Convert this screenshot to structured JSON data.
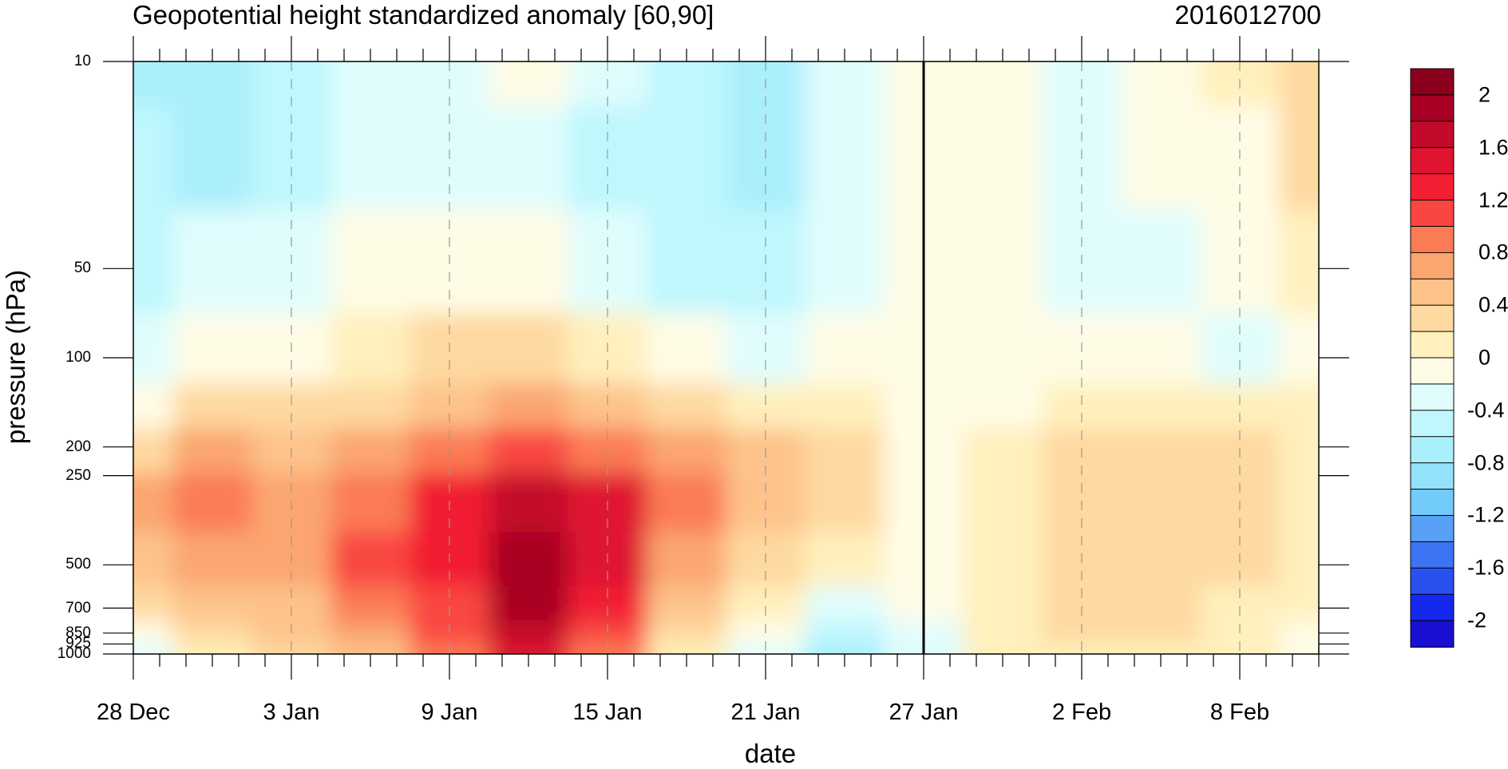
{
  "title_left": "Geopotential height standardized anomaly [60,90]",
  "title_right": "2016012700",
  "chart_data": {
    "type": "heatmap",
    "title": "Geopotential height standardized anomaly [60,90]",
    "timestamp": "2016012700",
    "xlabel": "date",
    "ylabel": "pressure (hPa)",
    "x_ticks": [
      "28 Dec",
      "3 Jan",
      "9 Jan",
      "15 Jan",
      "21 Jan",
      "27 Jan",
      "2 Feb",
      "8 Feb"
    ],
    "y_ticks": [
      "10",
      "50",
      "100",
      "200",
      "250",
      "500",
      "700",
      "850",
      "925",
      "1000"
    ],
    "y_scale": "log",
    "ylim": [
      1000,
      10
    ],
    "xlim_days": [
      0,
      45
    ],
    "colorbar_ticks": [
      "2",
      "1.6",
      "1.2",
      "0.8",
      "0.4",
      "0",
      "-0.4",
      "-0.8",
      "-1.2",
      "-1.6",
      "-2"
    ],
    "colorbar_levels": [
      -2.2,
      -2.0,
      -1.8,
      -1.6,
      -1.4,
      -1.2,
      -1.0,
      -0.8,
      -0.6,
      -0.4,
      -0.2,
      0.0,
      0.2,
      0.4,
      0.6,
      0.8,
      1.0,
      1.2,
      1.4,
      1.6,
      1.8,
      2.0,
      2.2
    ],
    "colorbar_colors": [
      "#1a0fd0",
      "#1528ee",
      "#2a50f0",
      "#3c74f3",
      "#57a0f6",
      "#73cbf9",
      "#92e2fb",
      "#aaeffc",
      "#bff7fd",
      "#e0fdfd",
      "#fffce6",
      "#fff0bd",
      "#fed9a0",
      "#fdc38a",
      "#fba66f",
      "#fb7b55",
      "#f94642",
      "#f21f33",
      "#df1430",
      "#c40a2a",
      "#a80024",
      "#8a001d"
    ],
    "forecast_marker": "27 Jan",
    "x_days": [
      0,
      3,
      6,
      9,
      12,
      15,
      18,
      21,
      24,
      27,
      30,
      33,
      36,
      39,
      42,
      45
    ],
    "pressure_levels": [
      10,
      20,
      50,
      100,
      150,
      200,
      300,
      500,
      700,
      850,
      1000
    ],
    "values": [
      [
        -0.8,
        -0.8,
        -0.6,
        -0.4,
        -0.4,
        -0.2,
        -0.4,
        -0.6,
        -0.8,
        -0.4,
        -0.2,
        -0.2,
        -0.4,
        -0.2,
        0.0,
        0.2
      ],
      [
        -0.6,
        -0.8,
        -0.6,
        -0.4,
        -0.4,
        -0.4,
        -0.6,
        -0.6,
        -0.8,
        -0.4,
        -0.2,
        -0.2,
        -0.4,
        -0.2,
        -0.2,
        0.2
      ],
      [
        -0.6,
        -0.4,
        -0.4,
        -0.2,
        -0.2,
        -0.2,
        -0.4,
        -0.6,
        -0.6,
        -0.4,
        -0.2,
        -0.2,
        -0.4,
        -0.4,
        -0.2,
        0.0
      ],
      [
        -0.4,
        -0.2,
        -0.2,
        0.0,
        0.2,
        0.2,
        0.0,
        -0.2,
        -0.4,
        -0.2,
        -0.2,
        -0.2,
        -0.2,
        -0.2,
        -0.4,
        -0.2
      ],
      [
        -0.2,
        0.2,
        0.2,
        0.2,
        0.4,
        0.6,
        0.4,
        0.2,
        0.0,
        0.0,
        -0.2,
        -0.2,
        0.0,
        0.0,
        0.0,
        0.0
      ],
      [
        0.2,
        0.6,
        0.4,
        0.6,
        0.8,
        1.0,
        0.8,
        0.6,
        0.4,
        0.2,
        -0.2,
        0.0,
        0.2,
        0.2,
        0.2,
        0.0
      ],
      [
        0.6,
        0.8,
        0.6,
        0.8,
        1.2,
        1.6,
        1.4,
        0.8,
        0.4,
        0.2,
        -0.2,
        0.0,
        0.2,
        0.2,
        0.2,
        0.0
      ],
      [
        0.4,
        0.6,
        0.6,
        1.0,
        1.2,
        1.8,
        1.4,
        0.6,
        0.2,
        0.0,
        -0.2,
        0.0,
        0.2,
        0.2,
        0.2,
        0.0
      ],
      [
        0.2,
        0.4,
        0.4,
        0.8,
        1.0,
        1.8,
        1.2,
        0.4,
        0.0,
        -0.4,
        -0.2,
        0.0,
        0.2,
        0.2,
        0.0,
        0.0
      ],
      [
        -0.2,
        0.2,
        0.4,
        0.6,
        1.0,
        1.6,
        1.0,
        0.2,
        -0.2,
        -0.6,
        -0.4,
        0.0,
        0.2,
        0.2,
        0.0,
        -0.2
      ],
      [
        -0.4,
        0.0,
        0.2,
        0.4,
        0.8,
        1.4,
        0.8,
        0.0,
        -0.4,
        -0.8,
        -0.4,
        0.0,
        0.0,
        0.0,
        0.0,
        -0.2
      ]
    ]
  }
}
